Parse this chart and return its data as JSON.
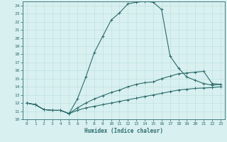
{
  "xlabel": "Humidex (Indice chaleur)",
  "x": [
    0,
    1,
    2,
    3,
    4,
    5,
    6,
    7,
    8,
    9,
    10,
    11,
    12,
    13,
    14,
    15,
    16,
    17,
    18,
    19,
    20,
    21,
    22,
    23
  ],
  "line1": [
    12.0,
    11.8,
    11.2,
    11.1,
    11.1,
    10.7,
    12.5,
    15.2,
    18.2,
    20.2,
    22.2,
    23.1,
    24.2,
    24.4,
    24.5,
    24.4,
    23.5,
    17.8,
    16.3,
    15.2,
    14.8,
    14.4,
    14.2,
    14.3
  ],
  "line2": [
    12.0,
    11.8,
    11.2,
    11.1,
    11.1,
    10.7,
    11.4,
    12.0,
    12.5,
    12.9,
    13.3,
    13.6,
    14.0,
    14.3,
    14.5,
    14.6,
    15.0,
    15.3,
    15.6,
    15.7,
    15.8,
    15.9,
    14.4,
    14.3
  ],
  "line3": [
    12.0,
    11.8,
    11.2,
    11.1,
    11.1,
    10.7,
    11.1,
    11.4,
    11.6,
    11.8,
    12.0,
    12.2,
    12.4,
    12.6,
    12.8,
    13.0,
    13.2,
    13.4,
    13.6,
    13.7,
    13.8,
    13.85,
    13.9,
    14.0
  ],
  "ylim": [
    10,
    24.5
  ],
  "xlim": [
    -0.5,
    23.5
  ],
  "yticks": [
    10,
    11,
    12,
    13,
    14,
    15,
    16,
    17,
    18,
    19,
    20,
    21,
    22,
    23,
    24
  ],
  "xticks": [
    0,
    1,
    2,
    3,
    4,
    5,
    6,
    7,
    8,
    9,
    10,
    11,
    12,
    13,
    14,
    15,
    16,
    17,
    18,
    19,
    20,
    21,
    22,
    23
  ],
  "line_color": "#2d6b6b",
  "bg_color": "#d9f0f0",
  "grid_color": "#b8dede",
  "marker": "+"
}
